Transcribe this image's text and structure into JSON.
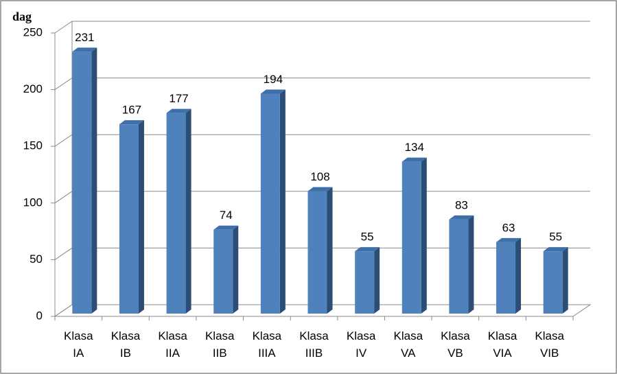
{
  "chart_data": {
    "type": "bar3d",
    "y_label": "dag",
    "categories": [
      "Klasa IA",
      "Klasa IB",
      "Klasa IIA",
      "Klasa IIB",
      "Klasa IIIA",
      "Klasa IIIB",
      "Klasa IV",
      "Klasa VA",
      "Klasa VB",
      "Klasa VIA",
      "Klasa VIB"
    ],
    "values": [
      231,
      167,
      177,
      74,
      194,
      108,
      55,
      134,
      83,
      63,
      55
    ],
    "color": "#4f81bd",
    "ylim": [
      0,
      250
    ],
    "yticks": [
      0,
      50,
      100,
      150,
      200,
      250
    ],
    "grid": true
  }
}
